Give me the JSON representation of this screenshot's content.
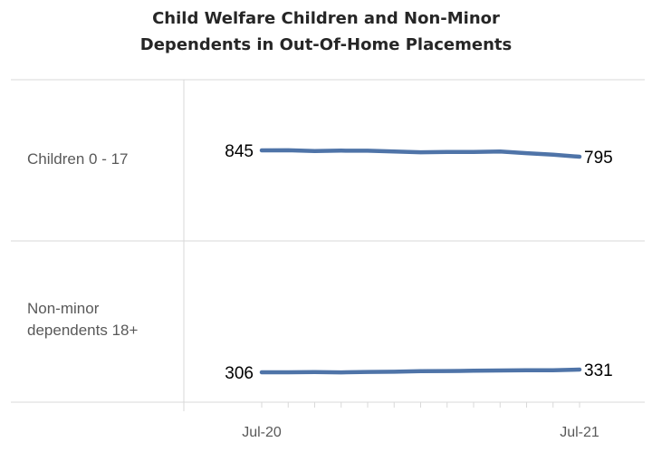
{
  "chart_data": {
    "type": "line",
    "title_lines": [
      "Child Welfare Children and Non-Minor",
      "Dependents in Out-Of-Home Placements"
    ],
    "rows": [
      {
        "label_lines": [
          "Children 0 - 17"
        ],
        "start_label": "845",
        "end_label": "795",
        "values": [
          845,
          846,
          840,
          843,
          842,
          836,
          830,
          832,
          833,
          836,
          823,
          811,
          795
        ]
      },
      {
        "label_lines": [
          "Non-minor",
          "dependents 18+"
        ],
        "start_label": "306",
        "end_label": "331",
        "values": [
          306,
          306,
          308,
          305,
          309,
          311,
          317,
          318,
          320,
          323,
          325,
          325,
          331
        ]
      }
    ],
    "x_ticks": [
      "Jul-20",
      "Jul-21"
    ],
    "line_color": "#4f74a8",
    "grid_color": "#d9d9d9"
  }
}
